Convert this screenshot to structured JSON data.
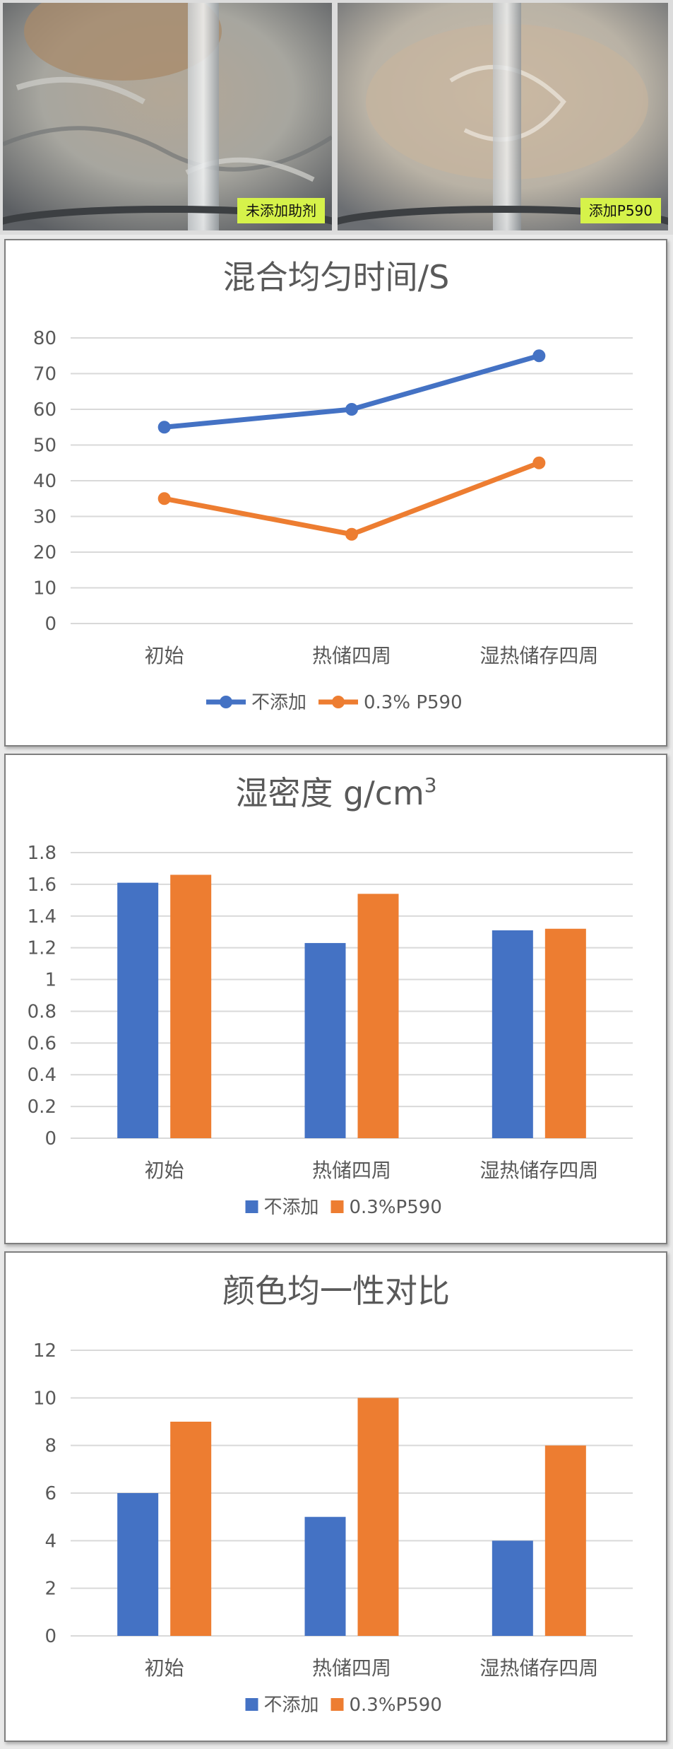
{
  "photos": [
    {
      "label": "未添加助剂"
    },
    {
      "label": "添加P590"
    }
  ],
  "colors": {
    "series1": "#4472c4",
    "series2": "#ed7d31",
    "photo_label_bg": "#d6f24a"
  },
  "chart_data": [
    {
      "type": "line",
      "title": "混合均匀时间/S",
      "categories": [
        "初始",
        "热储四周",
        "湿热储存四周"
      ],
      "series": [
        {
          "name": "不添加",
          "values": [
            55,
            60,
            75
          ]
        },
        {
          "name": "0.3% P590",
          "values": [
            35,
            25,
            45
          ]
        }
      ],
      "ylim": [
        0,
        80
      ],
      "yticks": [
        "0",
        "10",
        "20",
        "30",
        "40",
        "50",
        "60",
        "70",
        "80"
      ],
      "grid": true,
      "legend": "bottom"
    },
    {
      "type": "bar",
      "title": "湿密度 g/cm",
      "title_sup": "3",
      "categories": [
        "初始",
        "热储四周",
        "湿热储存四周"
      ],
      "series": [
        {
          "name": "不添加",
          "values": [
            1.61,
            1.23,
            1.31
          ]
        },
        {
          "name": "0.3%P590",
          "values": [
            1.66,
            1.54,
            1.32
          ]
        }
      ],
      "ylim": [
        0,
        1.8
      ],
      "yticks": [
        "0",
        "0.2",
        "0.4",
        "0.6",
        "0.8",
        "1",
        "1.2",
        "1.4",
        "1.6",
        "1.8"
      ],
      "grid": true,
      "legend": "bottom"
    },
    {
      "type": "bar",
      "title": "颜色均一性对比",
      "categories": [
        "初始",
        "热储四周",
        "湿热储存四周"
      ],
      "series": [
        {
          "name": "不添加",
          "values": [
            6,
            5,
            4
          ]
        },
        {
          "name": "0.3%P590",
          "values": [
            9,
            10,
            8
          ]
        }
      ],
      "ylim": [
        0,
        12
      ],
      "yticks": [
        "0",
        "2",
        "4",
        "6",
        "8",
        "10",
        "12"
      ],
      "grid": true,
      "legend": "bottom"
    }
  ]
}
